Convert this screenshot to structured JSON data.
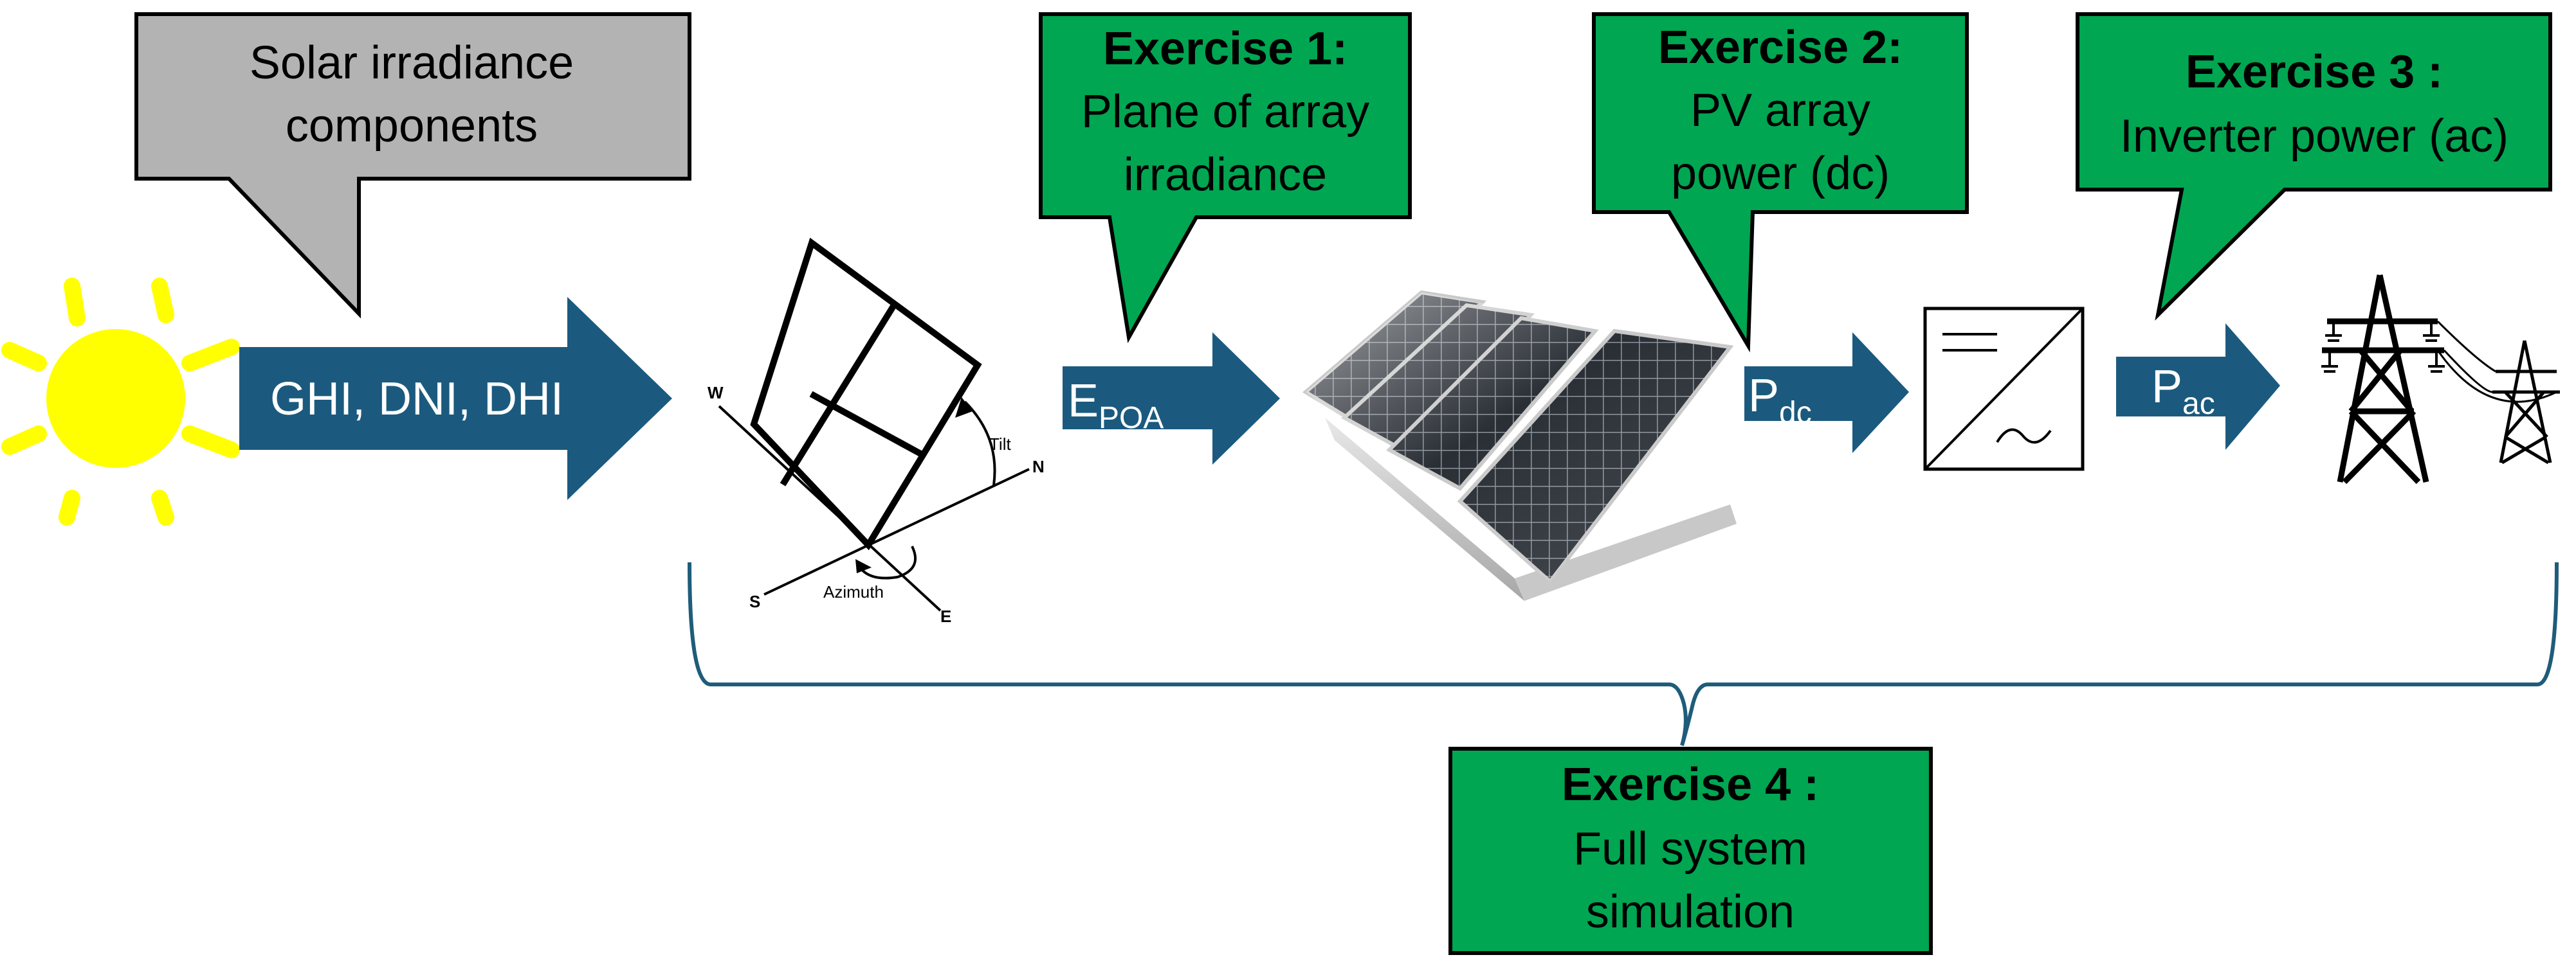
{
  "callouts": {
    "solar": {
      "line1": "Solar irradiance",
      "line2": "components"
    },
    "ex1": {
      "title": "Exercise 1:",
      "line1": "Plane of array",
      "line2": "irradiance"
    },
    "ex2": {
      "title": "Exercise 2:",
      "line1": "PV array",
      "line2": "power (dc)"
    },
    "ex3": {
      "title": "Exercise 3 :",
      "line1": "Inverter power (ac)"
    },
    "ex4": {
      "title": "Exercise 4 :",
      "line1": "Full system",
      "line2": "simulation"
    }
  },
  "arrows": {
    "irradiance": "GHI, DNI, DHI",
    "epoa": {
      "main": "E",
      "sub": "POA"
    },
    "pdc": {
      "main": "P",
      "sub": "dc"
    },
    "pac": {
      "main": "P",
      "sub": "ac"
    }
  },
  "orientation": {
    "tilt": "Tilt",
    "azimuth": "Azimuth",
    "n": "N",
    "s": "S",
    "e": "E",
    "w": "W"
  },
  "colors": {
    "green": "#00A651",
    "gray": "#B3B3B3",
    "arrow_blue": "#1B5A7E",
    "sun_yellow": "#FFFF00",
    "brace": "#1F5C7A"
  },
  "icons": [
    "sun-icon",
    "tilted-panel-diagram-icon",
    "solar-panels-icon",
    "inverter-icon",
    "transmission-tower-icon"
  ]
}
